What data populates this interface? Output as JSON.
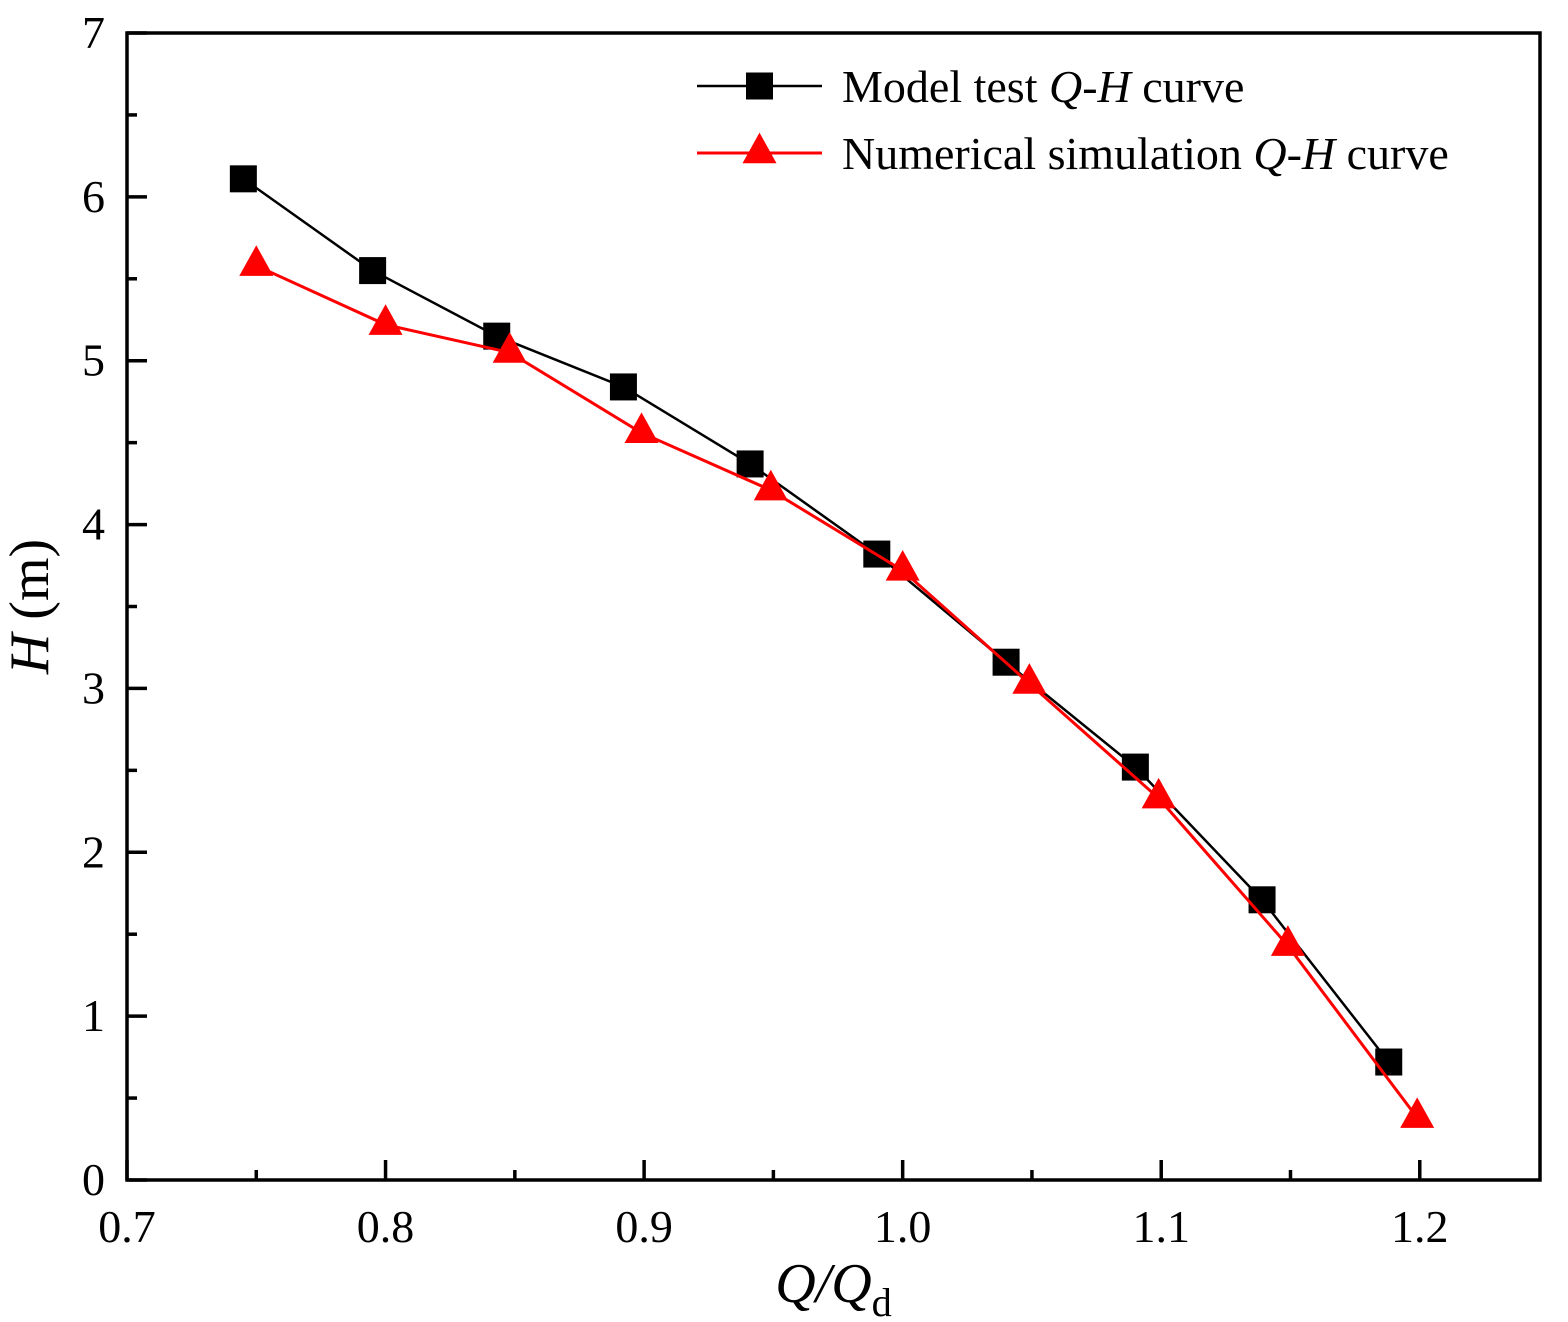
{
  "chart_data": {
    "type": "line",
    "title": "",
    "xlabel": {
      "italic": "Q/Q",
      "sub": "d"
    },
    "ylabel": {
      "italic": "H",
      "normal": " (m)"
    },
    "xlim": [
      0.7,
      1.2465
    ],
    "ylim": [
      0,
      7
    ],
    "xticks": [
      0.7,
      0.8,
      0.9,
      1.0,
      1.1,
      1.2
    ],
    "xtick_labels": [
      "0.7",
      "0.8",
      "0.9",
      "1.0",
      "1.1",
      "1.2"
    ],
    "xticks_minor": [
      0.75,
      0.85,
      0.95,
      1.05,
      1.15
    ],
    "yticks": [
      0,
      1,
      2,
      3,
      4,
      5,
      6,
      7
    ],
    "ytick_labels": [
      "0",
      "1",
      "2",
      "3",
      "4",
      "5",
      "6",
      "7"
    ],
    "yticks_minor": [
      0.5,
      1.5,
      2.5,
      3.5,
      4.5,
      5.5,
      6.5
    ],
    "grid": false,
    "legend_position": "top-right",
    "axis_color": "#000000",
    "series": [
      {
        "key": "model-test",
        "name_parts": [
          "Model test ",
          "Q-H",
          " curve"
        ],
        "color": "#000000",
        "marker": "square",
        "line_width": 2.5,
        "marker_size": 27,
        "x": [
          0.745,
          0.795,
          0.843,
          0.892,
          0.941,
          0.99,
          1.04,
          1.09,
          1.139,
          1.188
        ],
        "y": [
          6.11,
          5.55,
          5.15,
          4.84,
          4.37,
          3.82,
          3.16,
          2.52,
          1.71,
          0.72
        ]
      },
      {
        "key": "numerical-simulation",
        "name_parts": [
          "Numerical simulation ",
          "Q-H",
          " curve"
        ],
        "color": "#ff0000",
        "marker": "triangle",
        "line_width": 3,
        "marker_size": 34,
        "x": [
          0.75,
          0.8,
          0.848,
          0.899,
          0.949,
          1.0,
          1.049,
          1.099,
          1.149,
          1.199
        ],
        "y": [
          5.58,
          5.22,
          5.05,
          4.56,
          4.21,
          3.72,
          3.03,
          2.33,
          1.43,
          0.38
        ]
      }
    ]
  }
}
